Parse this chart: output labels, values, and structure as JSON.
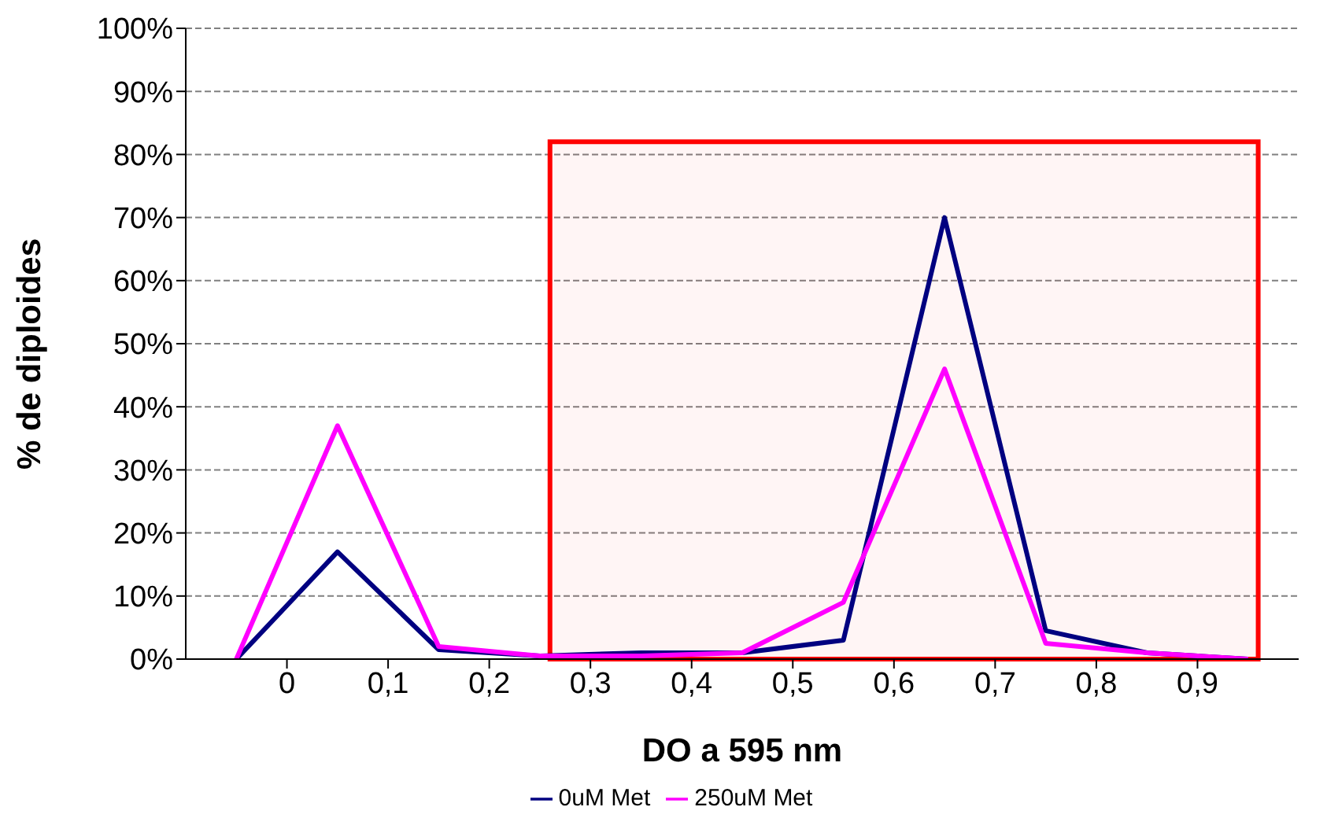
{
  "chart_data": {
    "type": "line",
    "xlabel": "DO a 595 nm",
    "ylabel": "% de diploides",
    "x": [
      -0.05,
      0.05,
      0.15,
      0.25,
      0.35,
      0.45,
      0.55,
      0.65,
      0.75,
      0.85,
      0.95
    ],
    "series": [
      {
        "name": "0uM Met",
        "color": "#000080",
        "values": [
          0,
          17,
          1.5,
          0.5,
          1,
          1,
          3,
          70,
          4.5,
          1,
          0
        ]
      },
      {
        "name": "250uM Met",
        "color": "#ff00ff",
        "values": [
          0,
          37,
          2,
          0.5,
          0.5,
          1,
          9,
          46,
          2.5,
          1,
          0
        ]
      }
    ],
    "xlim": [
      -0.1,
      1.0
    ],
    "xticks": [
      {
        "value": 0,
        "label": "0"
      },
      {
        "value": 0.1,
        "label": "0,1"
      },
      {
        "value": 0.2,
        "label": "0,2"
      },
      {
        "value": 0.3,
        "label": "0,3"
      },
      {
        "value": 0.4,
        "label": "0,4"
      },
      {
        "value": 0.5,
        "label": "0,5"
      },
      {
        "value": 0.6,
        "label": "0,6"
      },
      {
        "value": 0.7,
        "label": "0,7"
      },
      {
        "value": 0.8,
        "label": "0,8"
      },
      {
        "value": 0.9,
        "label": "0,9"
      }
    ],
    "ylim": [
      0,
      100
    ],
    "yticks": [
      {
        "value": 0,
        "label": "0%"
      },
      {
        "value": 10,
        "label": "10%"
      },
      {
        "value": 20,
        "label": "20%"
      },
      {
        "value": 30,
        "label": "30%"
      },
      {
        "value": 40,
        "label": "40%"
      },
      {
        "value": 50,
        "label": "50%"
      },
      {
        "value": 60,
        "label": "60%"
      },
      {
        "value": 70,
        "label": "70%"
      },
      {
        "value": 80,
        "label": "80%"
      },
      {
        "value": 90,
        "label": "90%"
      },
      {
        "value": 100,
        "label": "100%"
      }
    ],
    "bands": [
      {
        "axis": "x",
        "from": 0.26,
        "to": 0.96,
        "color": "#ff0000"
      }
    ],
    "grid": "y",
    "legend": "bottom",
    "marker": "none",
    "line_style": "solid"
  }
}
